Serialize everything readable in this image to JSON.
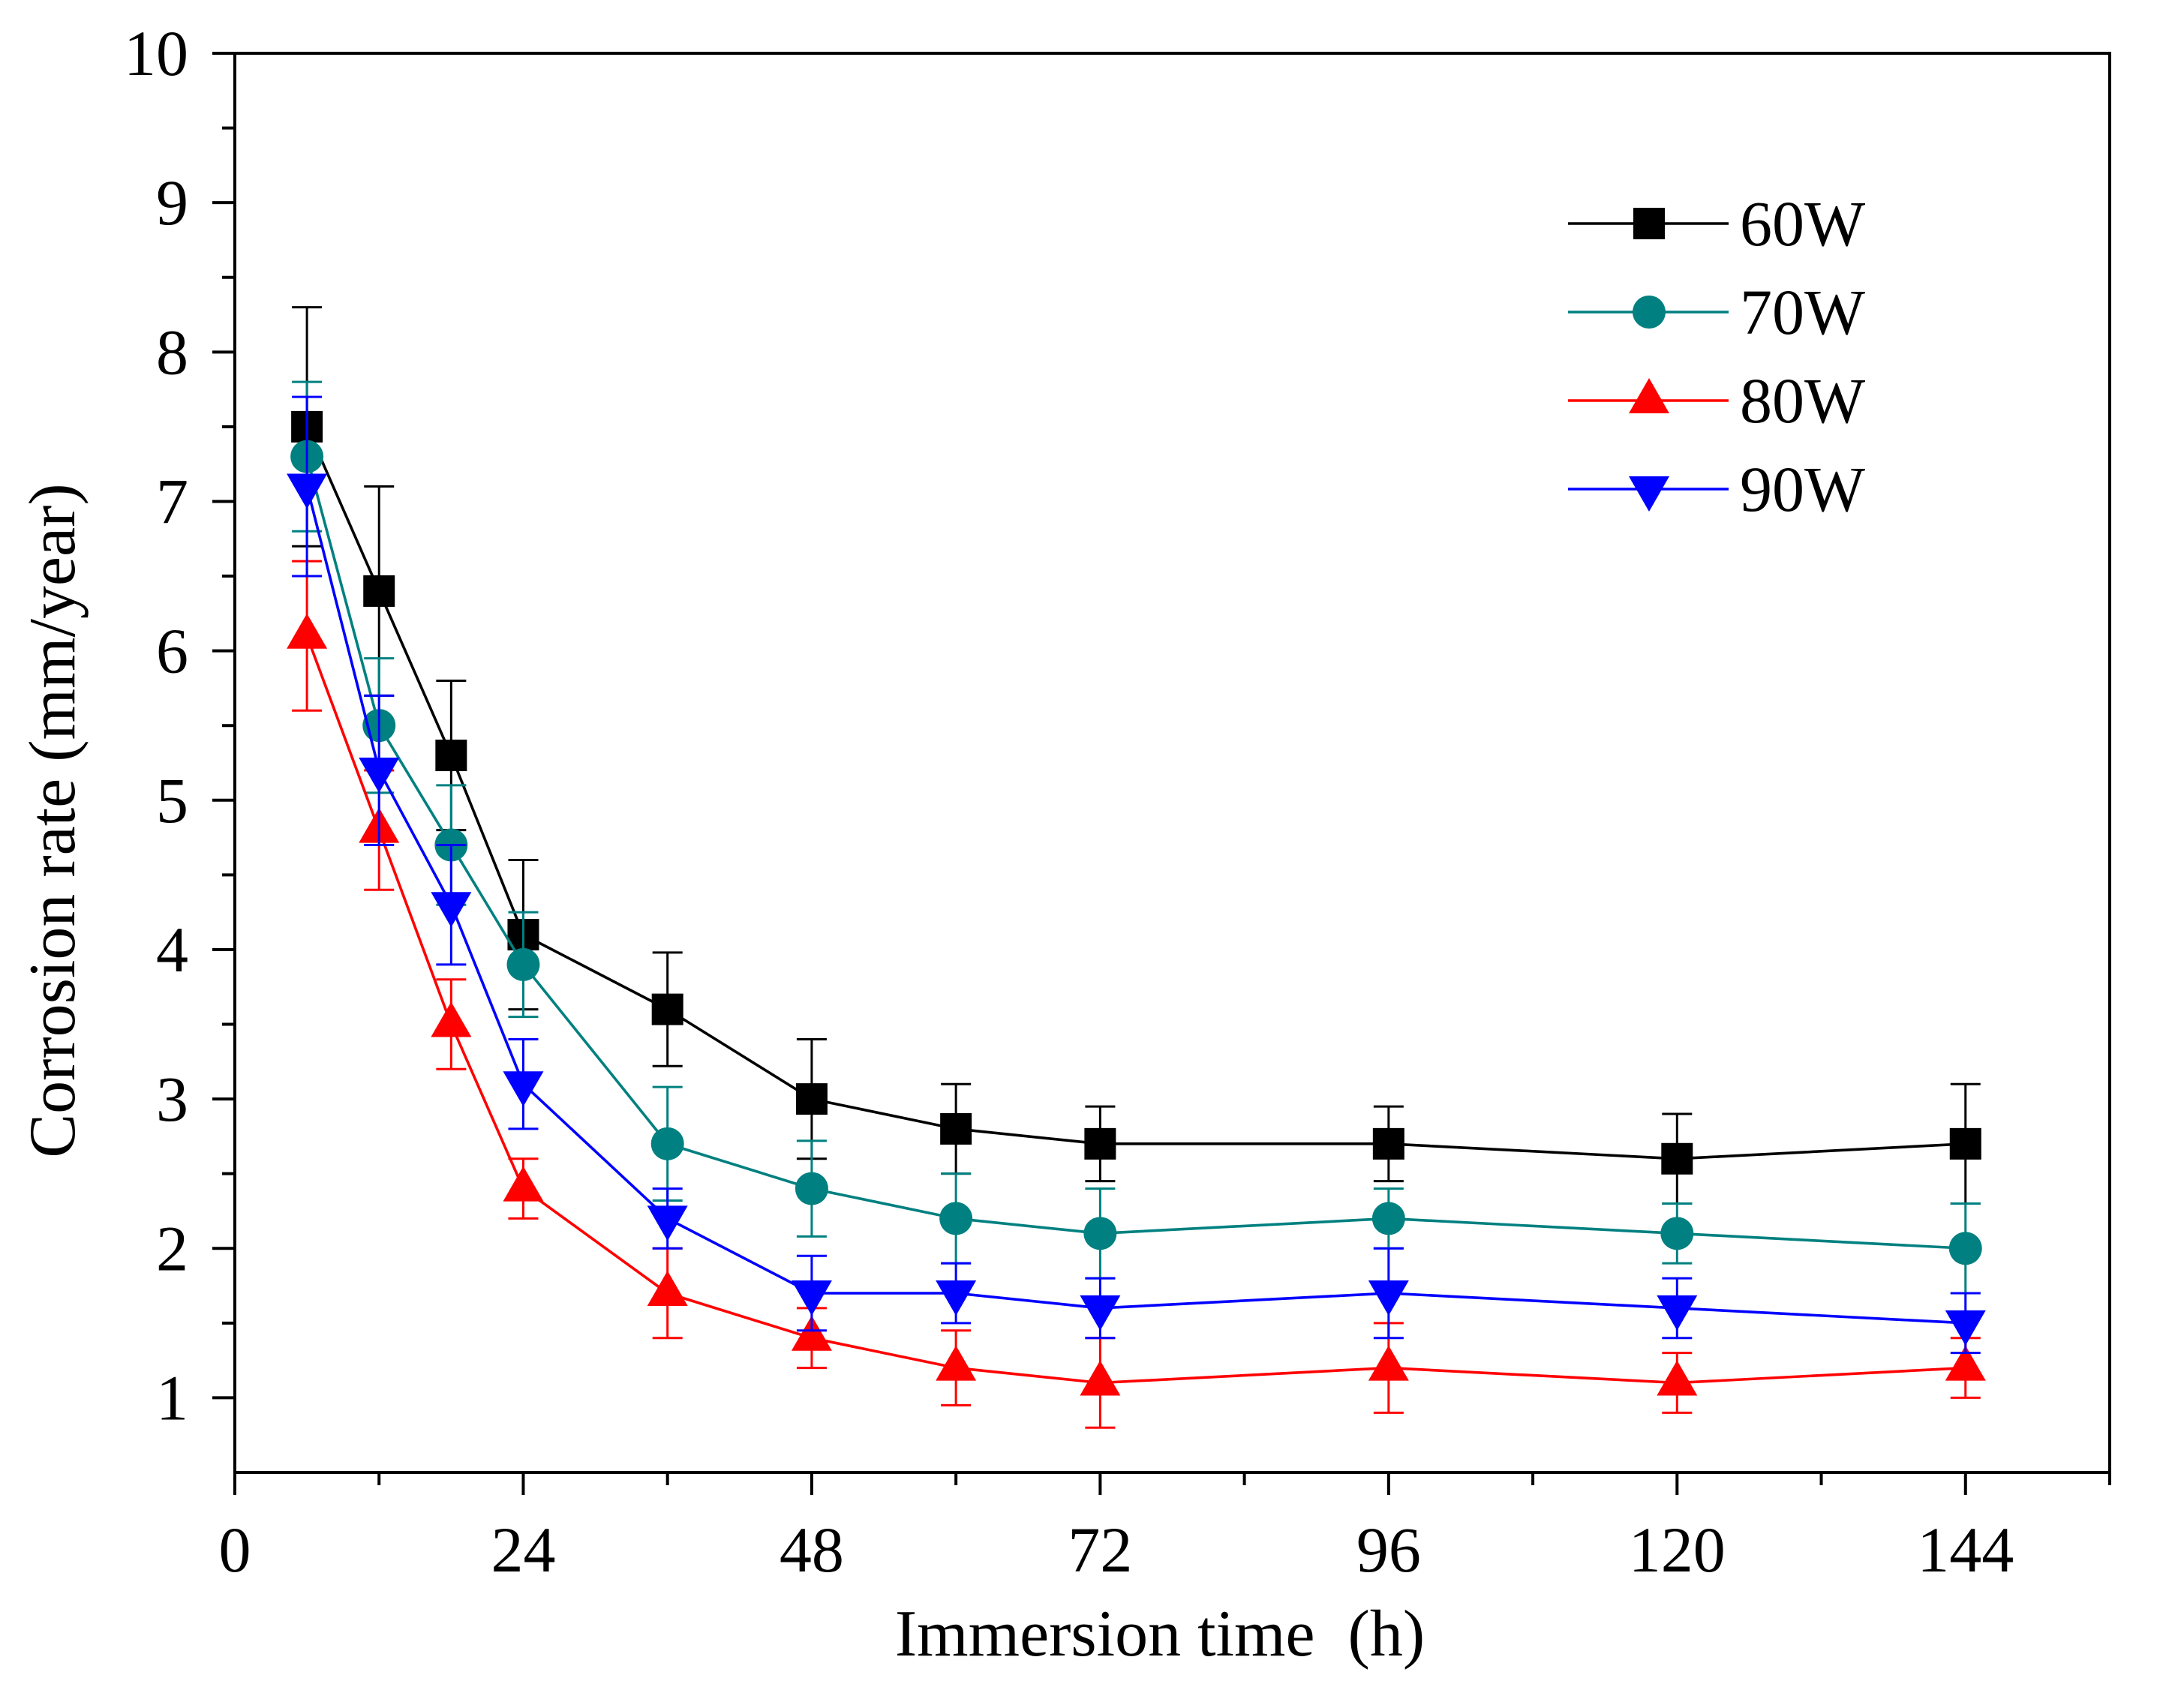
{
  "chart_data": {
    "type": "line",
    "title": "",
    "xlabel": "Immersion time  (h)",
    "ylabel": "Corrosion rate (mm/year)",
    "xlim": [
      0,
      156
    ],
    "ylim": [
      0.5,
      10
    ],
    "x_ticks": [
      0,
      24,
      48,
      72,
      96,
      120,
      144
    ],
    "x_tick_labels": [
      "0",
      "24",
      "48",
      "72",
      "96",
      "120",
      "144"
    ],
    "x_minor_ticks": [
      12,
      36,
      60,
      84,
      108,
      132,
      156
    ],
    "y_ticks": [
      1,
      2,
      3,
      4,
      5,
      6,
      7,
      8,
      9,
      10
    ],
    "y_tick_labels": [
      "1",
      "2",
      "3",
      "4",
      "5",
      "6",
      "7",
      "8",
      "9",
      "10"
    ],
    "y_minor_ticks": [
      1.5,
      2.5,
      3.5,
      4.5,
      5.5,
      6.5,
      7.5,
      8.5,
      9.5
    ],
    "grid": false,
    "legend": "top-right",
    "x": [
      6,
      12,
      18,
      24,
      36,
      48,
      60,
      72,
      96,
      120,
      144
    ],
    "series": [
      {
        "name": "60W",
        "color": "#000000",
        "marker": "square",
        "values": [
          7.5,
          6.4,
          5.3,
          4.1,
          3.6,
          3.0,
          2.8,
          2.7,
          2.7,
          2.6,
          2.7
        ],
        "errors": [
          0.8,
          0.7,
          0.5,
          0.5,
          0.38,
          0.4,
          0.3,
          0.25,
          0.25,
          0.3,
          0.4
        ]
      },
      {
        "name": "70W",
        "color": "#008080",
        "marker": "circle",
        "values": [
          7.3,
          5.5,
          4.7,
          3.9,
          2.7,
          2.4,
          2.2,
          2.1,
          2.2,
          2.1,
          2.0
        ],
        "errors": [
          0.5,
          0.45,
          0.4,
          0.35,
          0.38,
          0.32,
          0.3,
          0.3,
          0.2,
          0.2,
          0.3
        ]
      },
      {
        "name": "80W",
        "color": "#FF0000",
        "marker": "triangle-up",
        "values": [
          6.1,
          4.8,
          3.5,
          2.4,
          1.7,
          1.4,
          1.2,
          1.1,
          1.2,
          1.1,
          1.2
        ],
        "errors": [
          0.5,
          0.4,
          0.3,
          0.2,
          0.3,
          0.2,
          0.25,
          0.3,
          0.3,
          0.2,
          0.2
        ]
      },
      {
        "name": "90W",
        "color": "#0000FF",
        "marker": "triangle-down",
        "values": [
          7.1,
          5.2,
          4.3,
          3.1,
          2.2,
          1.7,
          1.7,
          1.6,
          1.7,
          1.6,
          1.5
        ],
        "errors": [
          0.6,
          0.5,
          0.4,
          0.3,
          0.2,
          0.25,
          0.2,
          0.2,
          0.3,
          0.2,
          0.2
        ]
      }
    ]
  }
}
